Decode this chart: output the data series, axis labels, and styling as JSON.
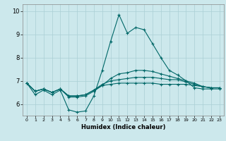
{
  "title": "",
  "xlabel": "Humidex (Indice chaleur)",
  "ylabel": "",
  "xlim": [
    -0.5,
    23.5
  ],
  "ylim": [
    5.5,
    10.3
  ],
  "yticks": [
    6,
    7,
    8,
    9,
    10
  ],
  "xticks": [
    0,
    1,
    2,
    3,
    4,
    5,
    6,
    7,
    8,
    9,
    10,
    11,
    12,
    13,
    14,
    15,
    16,
    17,
    18,
    19,
    20,
    21,
    22,
    23
  ],
  "bg_color": "#cce8ec",
  "line_color": "#006868",
  "grid_color": "#aacfd4",
  "curves": [
    [
      6.9,
      6.4,
      6.6,
      6.4,
      6.6,
      5.75,
      5.65,
      5.7,
      6.35,
      7.45,
      8.7,
      9.85,
      9.05,
      9.3,
      9.2,
      8.6,
      8.0,
      7.45,
      7.25,
      7.0,
      6.7,
      6.65,
      6.65,
      6.65
    ],
    [
      6.9,
      6.55,
      6.65,
      6.5,
      6.65,
      6.3,
      6.3,
      6.35,
      6.55,
      6.8,
      7.1,
      7.3,
      7.35,
      7.45,
      7.45,
      7.4,
      7.3,
      7.2,
      7.1,
      7.0,
      6.9,
      6.75,
      6.7,
      6.7
    ],
    [
      6.9,
      6.55,
      6.65,
      6.5,
      6.65,
      6.35,
      6.35,
      6.4,
      6.6,
      6.85,
      7.0,
      7.05,
      7.1,
      7.15,
      7.15,
      7.15,
      7.1,
      7.05,
      7.05,
      6.95,
      6.85,
      6.75,
      6.7,
      6.7
    ],
    [
      6.9,
      6.55,
      6.65,
      6.5,
      6.65,
      6.35,
      6.35,
      6.4,
      6.6,
      6.8,
      6.85,
      6.9,
      6.9,
      6.9,
      6.9,
      6.9,
      6.85,
      6.85,
      6.85,
      6.85,
      6.8,
      6.75,
      6.7,
      6.7
    ]
  ]
}
